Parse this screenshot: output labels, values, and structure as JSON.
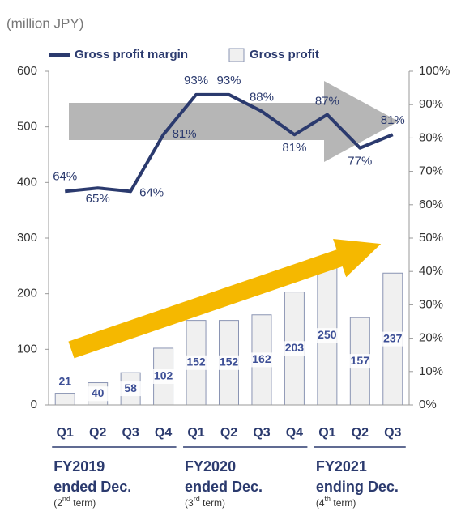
{
  "chart_data": {
    "type": "bar_line",
    "unit_label": "(million JPY)",
    "categories": [
      "Q1",
      "Q2",
      "Q3",
      "Q4",
      "Q1",
      "Q2",
      "Q3",
      "Q4",
      "Q1",
      "Q2",
      "Q3"
    ],
    "series": [
      {
        "name": "Gross profit margin",
        "type": "line",
        "axis": "y2",
        "color": "#2b3a6e",
        "values": [
          64,
          65,
          64,
          81,
          93,
          93,
          88,
          81,
          87,
          77,
          81
        ],
        "value_labels": [
          "64%",
          "65%",
          "64%",
          "81%",
          "93%",
          "93%",
          "88%",
          "81%",
          "87%",
          "77%",
          "81%"
        ]
      },
      {
        "name": "Gross profit",
        "type": "bar",
        "color": "#f0f0f0",
        "values": [
          21,
          40,
          58,
          102,
          152,
          152,
          162,
          203,
          250,
          157,
          237
        ]
      }
    ],
    "groups": [
      {
        "label": "FY2019",
        "sub": "ended Dec.",
        "term": [
          "(2",
          "nd",
          " term)"
        ]
      },
      {
        "label": "FY2020",
        "sub": "ended Dec.",
        "term": [
          "(3",
          "rd",
          " term)"
        ]
      },
      {
        "label": "FY2021",
        "sub": "ending Dec.",
        "term": [
          "(4",
          "th",
          " term)"
        ]
      }
    ],
    "ylim": [
      0,
      600
    ],
    "yticks": [
      0,
      100,
      200,
      300,
      400,
      500,
      600
    ],
    "y2lim": [
      0,
      100
    ],
    "y2ticks": [
      {
        "value": 0,
        "label": "0%"
      },
      {
        "value": 10,
        "label": "10%"
      },
      {
        "value": 20,
        "label": "20%"
      },
      {
        "value": 30,
        "label": "30%"
      },
      {
        "value": 40,
        "label": "40%"
      },
      {
        "value": 50,
        "label": "50%"
      },
      {
        "value": 60,
        "label": "60%"
      },
      {
        "value": 70,
        "label": "70%"
      },
      {
        "value": 80,
        "label": "80%"
      },
      {
        "value": 90,
        "label": "90%"
      },
      {
        "value": 100,
        "label": "100%"
      }
    ]
  }
}
